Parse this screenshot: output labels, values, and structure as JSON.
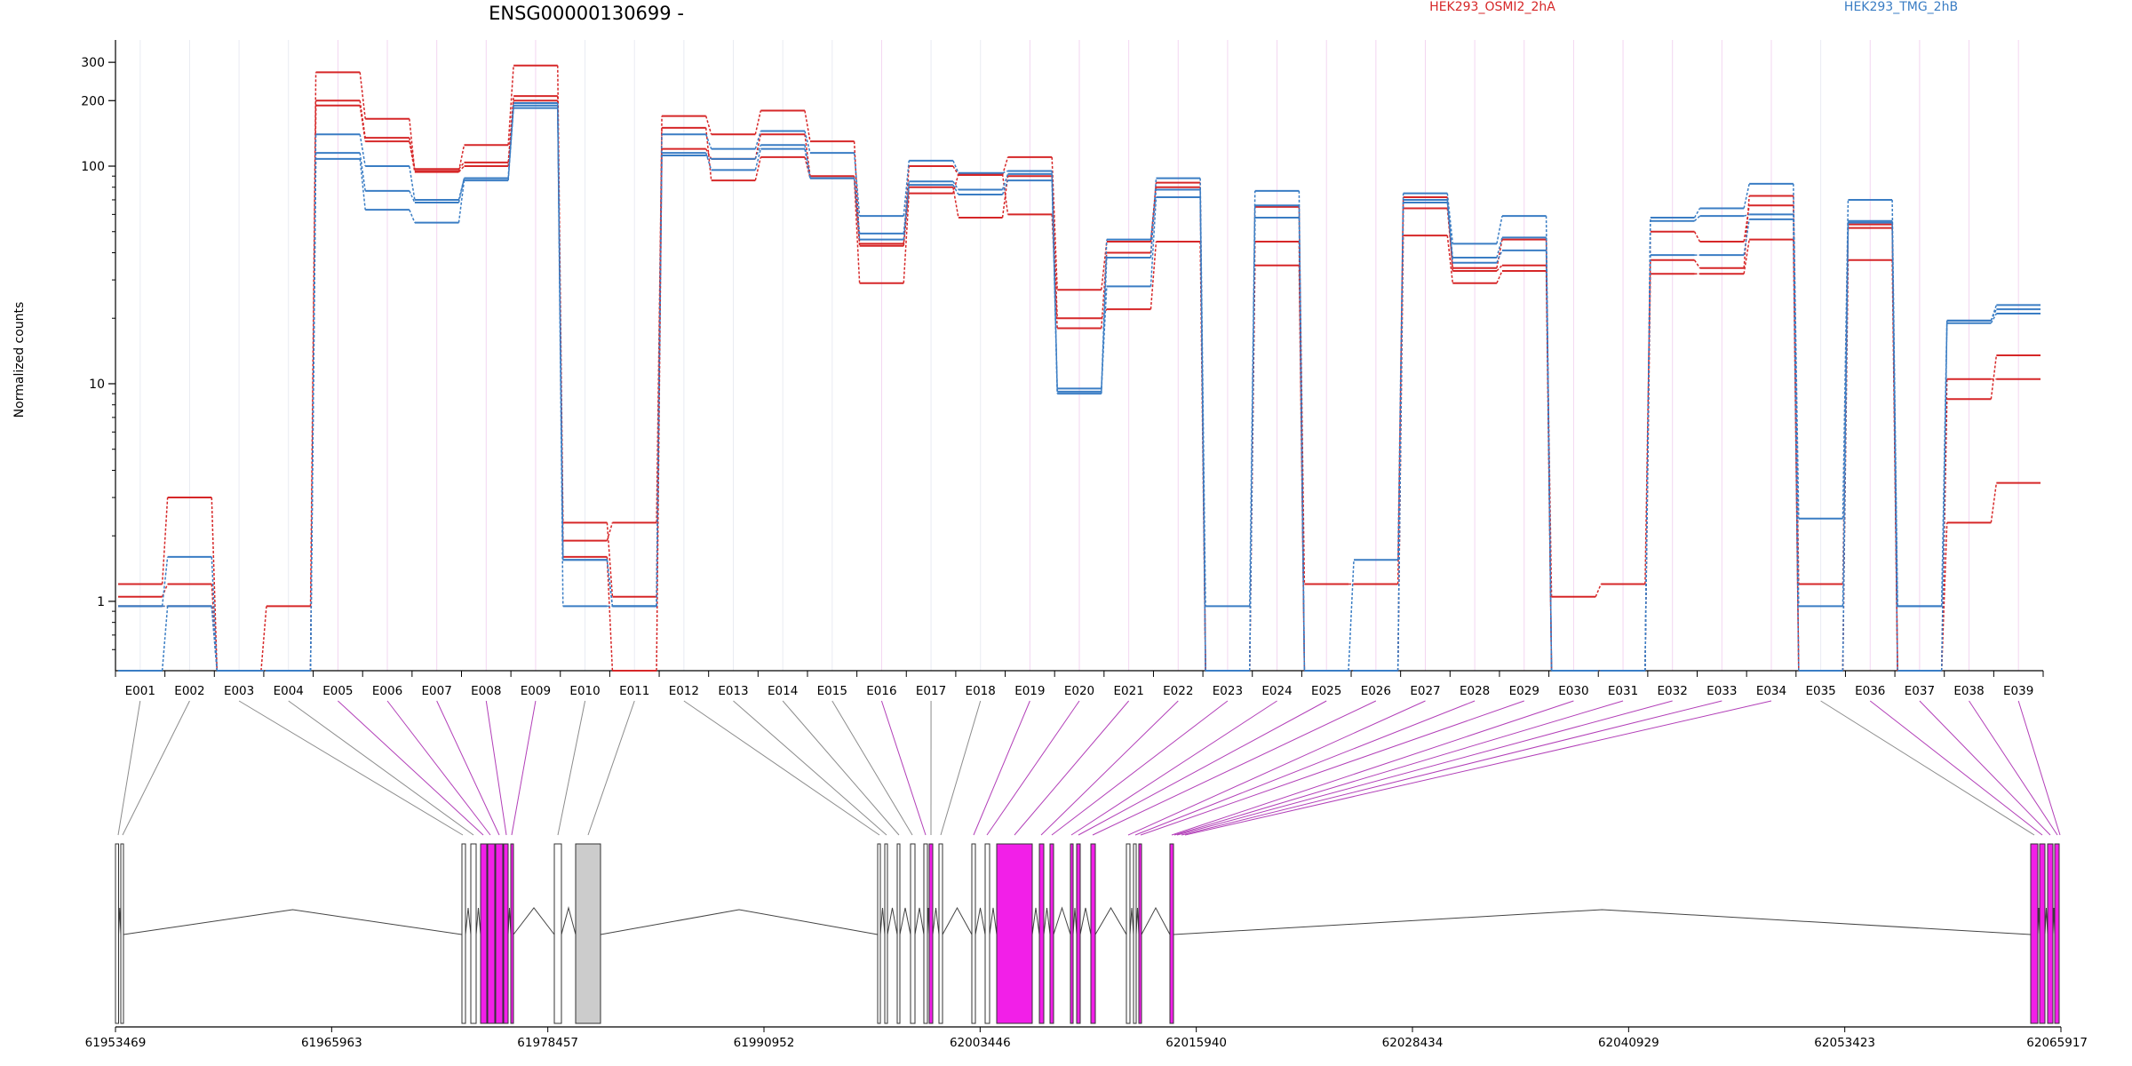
{
  "title": "ENSG00000130699 -",
  "legend": [
    {
      "label": "HEK293_OSMI2_2hA",
      "color": "#d62728"
    },
    {
      "label": "HEK293_TMG_2hB",
      "color": "#3a7dc4"
    }
  ],
  "colors": {
    "exon_highlight": "#f21fe8",
    "exon_gray": "#cccccc",
    "connector_gray": "#8c8c8c",
    "connector_magenta": "#b23fb8"
  },
  "chart_data": {
    "type": "line",
    "ylabel": "Normalized counts",
    "yscale": "log",
    "ylim": [
      0.48,
      380
    ],
    "yticks": [
      1,
      10,
      100,
      200,
      300
    ],
    "ytick_labels": [
      "1",
      "10",
      "100",
      "200",
      "300"
    ],
    "categories": [
      "E001",
      "E002",
      "E003",
      "E004",
      "E005",
      "E006",
      "E007",
      "E008",
      "E009",
      "E010",
      "E011",
      "E012",
      "E013",
      "E014",
      "E015",
      "E016",
      "E017",
      "E018",
      "E019",
      "E020",
      "E021",
      "E022",
      "E023",
      "E024",
      "E025",
      "E026",
      "E027",
      "E028",
      "E029",
      "E030",
      "E031",
      "E032",
      "E033",
      "E034",
      "E035",
      "E036",
      "E037",
      "E038",
      "E039"
    ],
    "highlighted_exons": [
      "E005",
      "E006",
      "E007",
      "E008",
      "E009",
      "E016",
      "E019",
      "E020",
      "E021",
      "E022",
      "E023",
      "E024",
      "E025",
      "E026",
      "E027",
      "E028",
      "E029",
      "E030",
      "E031",
      "E032",
      "E033",
      "E034",
      "E036",
      "E037",
      "E038",
      "E039"
    ],
    "series": [
      {
        "group": "HEK293_OSMI2_2hA",
        "values": [
          1.2,
          3,
          0.48,
          0.95,
          270,
          165,
          95,
          125,
          290,
          2.3,
          1.05,
          170,
          140,
          180,
          130,
          44,
          100,
          91,
          110,
          27,
          45,
          84,
          0.48,
          65,
          1.2,
          1.2,
          72,
          33,
          35,
          1.05,
          1.2,
          37,
          34,
          73,
          1.2,
          54,
          0.48,
          10.5,
          10.5
        ]
      },
      {
        "group": "HEK293_OSMI2_2hA",
        "values": [
          1.05,
          1.2,
          0.48,
          0.48,
          200,
          135,
          97,
          104,
          210,
          1.6,
          0.48,
          120,
          108,
          140,
          90,
          43,
          80,
          58,
          90,
          20,
          22,
          45,
          0.48,
          35,
          0.48,
          0.48,
          48,
          29,
          33,
          0.48,
          0.48,
          32,
          32,
          46,
          0.48,
          37,
          0.48,
          2.3,
          3.5
        ]
      },
      {
        "group": "HEK293_OSMI2_2hA",
        "values": [
          0.95,
          0.95,
          0.48,
          0.48,
          190,
          130,
          94,
          100,
          200,
          1.9,
          2.3,
          150,
          86,
          110,
          88,
          29,
          75,
          92,
          60,
          18,
          40,
          80,
          0.48,
          45,
          0.48,
          0.48,
          64,
          34,
          46,
          0.48,
          0.48,
          50,
          45,
          66,
          0.48,
          52,
          0.48,
          8.5,
          13.5
        ]
      },
      {
        "group": "HEK293_TMG_2hB",
        "values": [
          0.95,
          1.6,
          0.48,
          0.48,
          140,
          100,
          70,
          88,
          190,
          1.55,
          0.95,
          140,
          120,
          145,
          115,
          59,
          106,
          93,
          95,
          9,
          38,
          88,
          0.95,
          77,
          0.48,
          1.55,
          75,
          44,
          59,
          0.48,
          0.48,
          58,
          64,
          83,
          2.4,
          70,
          0.95,
          19.5,
          23
        ]
      },
      {
        "group": "HEK293_TMG_2hB",
        "values": [
          0.95,
          0.95,
          0.48,
          0.48,
          115,
          77,
          68,
          88,
          195,
          1.55,
          0.95,
          115,
          96,
          120,
          88,
          49,
          85,
          78,
          92,
          9.5,
          28,
          72,
          0.48,
          58,
          0.48,
          0.48,
          70,
          36,
          41,
          0.48,
          0.48,
          56,
          59,
          60,
          0.95,
          56,
          0.95,
          19,
          21
        ]
      },
      {
        "group": "HEK293_TMG_2hB",
        "values": [
          0.48,
          0.95,
          0.48,
          0.48,
          108,
          63,
          55,
          86,
          185,
          0.95,
          0.95,
          112,
          108,
          125,
          88,
          46,
          82,
          74,
          86,
          9.2,
          46,
          78,
          0.48,
          66,
          0.48,
          0.48,
          68,
          38,
          47,
          0.48,
          0.48,
          39,
          39,
          57,
          0.48,
          55,
          0.48,
          19.5,
          22
        ]
      }
    ]
  },
  "gene_track": {
    "coordinate_labels": [
      "61953469",
      "61965963",
      "61978457",
      "61990952",
      "62003446",
      "62015940",
      "62028434",
      "62040929",
      "62053423",
      "62065917"
    ]
  }
}
